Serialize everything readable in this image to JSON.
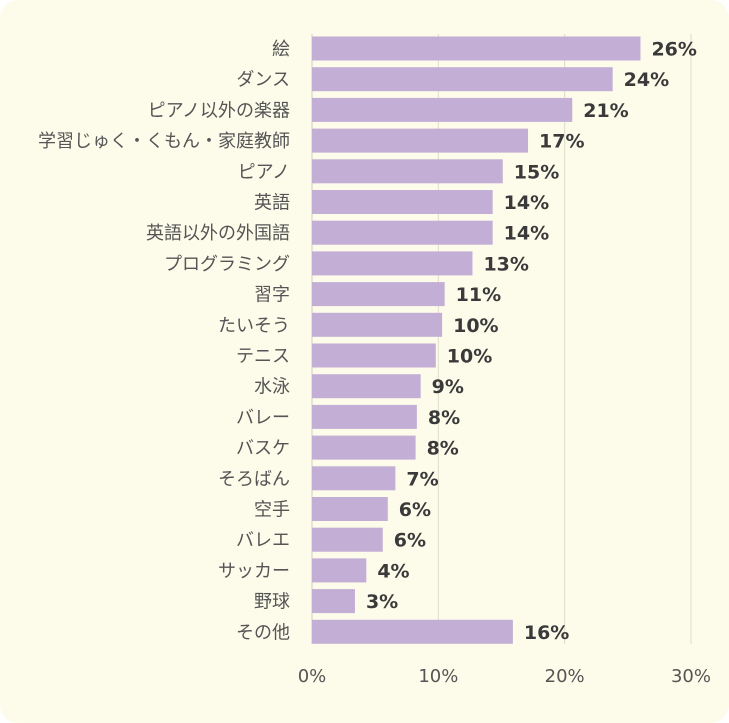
{
  "chart_data": {
    "type": "bar",
    "orientation": "horizontal",
    "categories": [
      "絵",
      "ダンス",
      "ピアノ以外の楽器",
      "学習じゅく・くもん・家庭教師",
      "ピアノ",
      "英語",
      "英語以外の外国語",
      "プログラミング",
      "習字",
      "たいそう",
      "テニス",
      "水泳",
      "バレー",
      "バスケ",
      "そろばん",
      "空手",
      "バレエ",
      "サッカー",
      "野球",
      "その他"
    ],
    "values": [
      26,
      24,
      21,
      17,
      15,
      14,
      14,
      13,
      11,
      10,
      10,
      9,
      8,
      8,
      7,
      6,
      6,
      4,
      3,
      16
    ],
    "plotted_values": [
      26.0,
      23.8,
      20.6,
      17.1,
      15.1,
      14.3,
      14.3,
      12.7,
      10.5,
      10.3,
      9.8,
      8.6,
      8.3,
      8.2,
      6.6,
      6.0,
      5.6,
      4.3,
      3.4,
      15.9
    ],
    "data_labels": [
      "26%",
      "24%",
      "21%",
      "17%",
      "15%",
      "14%",
      "14%",
      "13%",
      "11%",
      "10%",
      "10%",
      "9%",
      "8%",
      "8%",
      "7%",
      "6%",
      "6%",
      "4%",
      "3%",
      "16%"
    ],
    "xlim": [
      0,
      30
    ],
    "x_ticks": [
      0,
      10,
      20,
      30
    ],
    "x_tick_labels": [
      "0%",
      "10%",
      "20%",
      "30%"
    ],
    "grid": "vertical",
    "title": "",
    "xlabel": "",
    "ylabel": "",
    "colors": {
      "bar": "#c3aed6",
      "background": "#fdfbea",
      "grid": "#dcdcc8"
    }
  }
}
